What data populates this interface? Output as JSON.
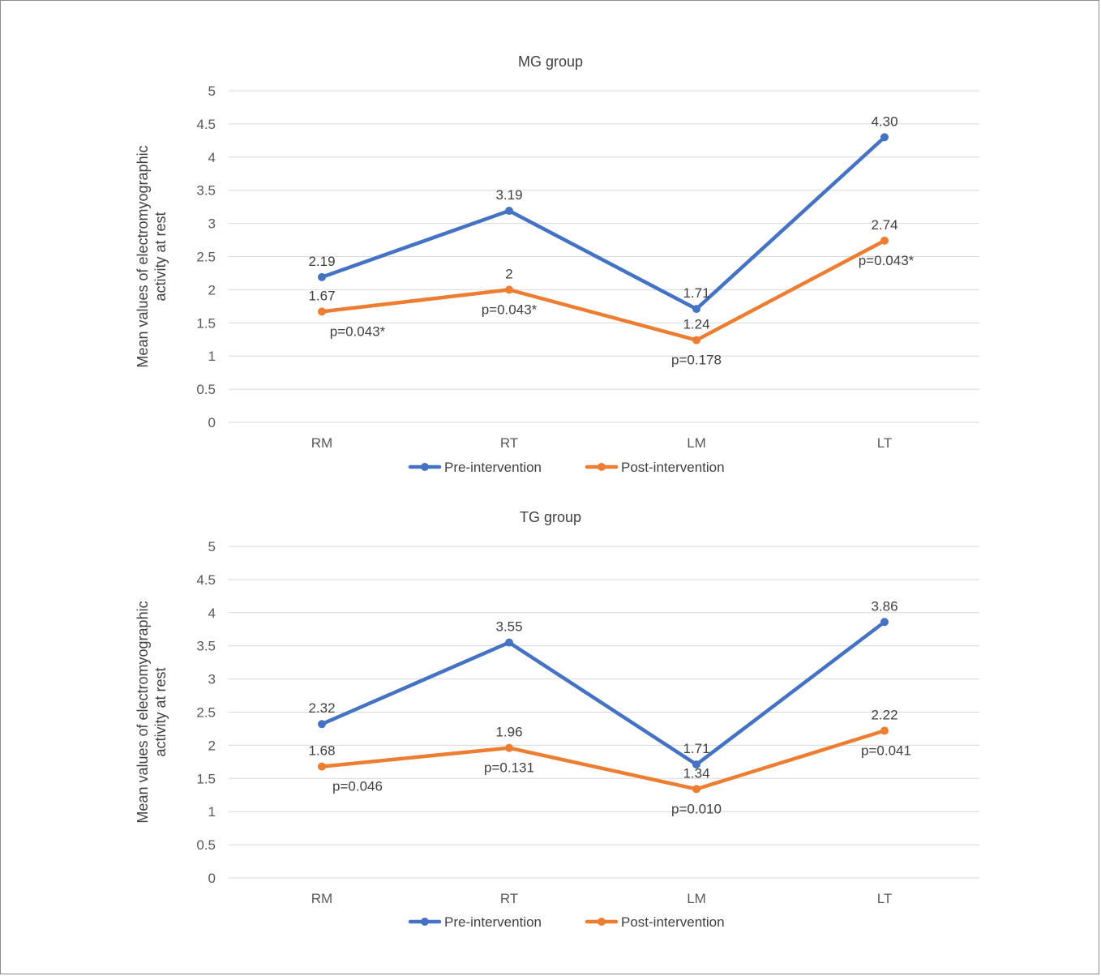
{
  "chart_data": [
    {
      "type": "line",
      "title": "MG group",
      "ylabel_line1": "Mean values of electromyographic",
      "ylabel_line2": "activity at rest",
      "categories": [
        "RM",
        "RT",
        "LM",
        "LT"
      ],
      "ylim": [
        0,
        5
      ],
      "yticks": [
        "0",
        "0.5",
        "1",
        "1.5",
        "2",
        "2.5",
        "3",
        "3.5",
        "4",
        "4.5",
        "5"
      ],
      "grid": true,
      "legend_position": "bottom",
      "series": [
        {
          "name": "Pre-intervention",
          "color": "#4472c4",
          "values": [
            2.19,
            3.19,
            1.71,
            4.3
          ],
          "labels": [
            "2.19",
            "3.19",
            "1.71",
            "4.30"
          ]
        },
        {
          "name": "Post-intervention",
          "color": "#ed7d31",
          "values": [
            1.67,
            2.0,
            1.24,
            2.74
          ],
          "labels": [
            "1.67",
            "2",
            "1.24",
            "2.74"
          ]
        }
      ],
      "p_values": [
        "p=0.043*",
        "p=0.043*",
        "p=0.178",
        "p=0.043*"
      ]
    },
    {
      "type": "line",
      "title": "TG group",
      "ylabel_line1": "Mean values of electromyographic",
      "ylabel_line2": "activity at rest",
      "categories": [
        "RM",
        "RT",
        "LM",
        "LT"
      ],
      "ylim": [
        0,
        5
      ],
      "yticks": [
        "0",
        "0.5",
        "1",
        "1.5",
        "2",
        "2.5",
        "3",
        "3.5",
        "4",
        "4.5",
        "5"
      ],
      "grid": true,
      "legend_position": "bottom",
      "series": [
        {
          "name": "Pre-intervention",
          "color": "#4472c4",
          "values": [
            2.32,
            3.55,
            1.71,
            3.86
          ],
          "labels": [
            "2.32",
            "3.55",
            "1.71",
            "3.86"
          ]
        },
        {
          "name": "Post-intervention",
          "color": "#ed7d31",
          "values": [
            1.68,
            1.96,
            1.34,
            2.22
          ],
          "labels": [
            "1.68",
            "1.96",
            "1.34",
            "2.22"
          ]
        }
      ],
      "p_values": [
        "p=0.046",
        "p=0.131",
        "p=0.010",
        "p=0.041"
      ]
    }
  ]
}
